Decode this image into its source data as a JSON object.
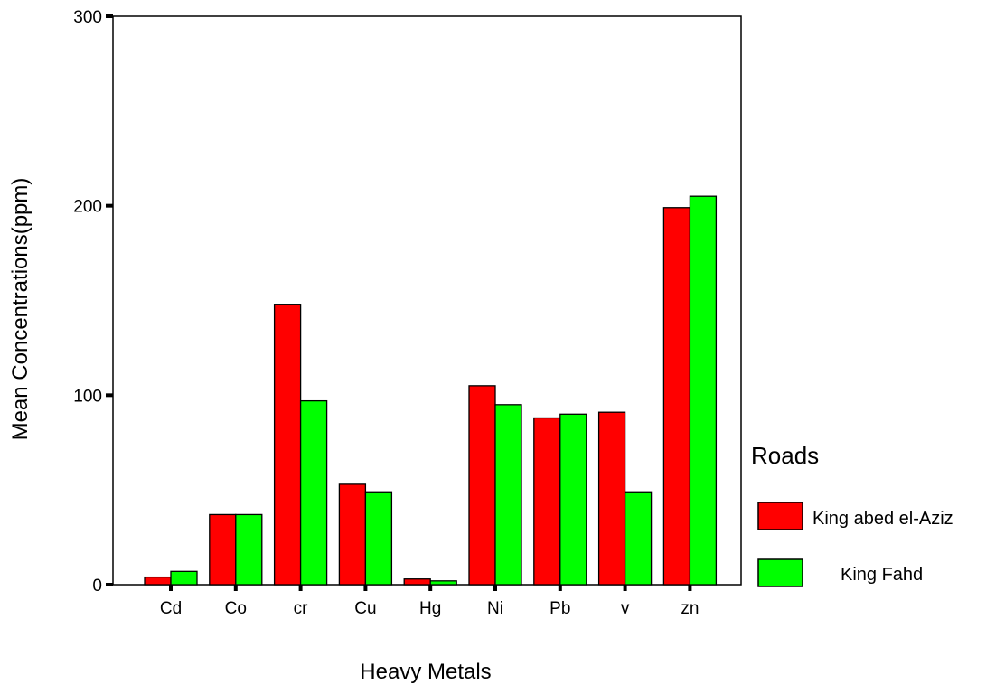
{
  "chart_data": {
    "type": "bar",
    "title": "",
    "xlabel": "Heavy Metals",
    "ylabel": "Mean Concentrations(ppm)",
    "ylim": [
      0,
      300
    ],
    "yticks": [
      "0",
      "100",
      "200",
      "300"
    ],
    "grid": false,
    "legend_placement": "right",
    "legend_title": "Roads",
    "categories": [
      "Cd",
      "Co",
      "cr",
      "Cu",
      "Hg",
      "Ni",
      "Pb",
      "v",
      "zn"
    ],
    "series": [
      {
        "name": "King abed el-Aziz",
        "color": "#ff0000",
        "values": [
          4,
          37,
          148,
          53,
          3,
          105,
          88,
          91,
          199
        ]
      },
      {
        "name": "King Fahd",
        "color": "#00ff00",
        "values": [
          7,
          37,
          97,
          49,
          2,
          95,
          90,
          49,
          205
        ]
      }
    ]
  }
}
